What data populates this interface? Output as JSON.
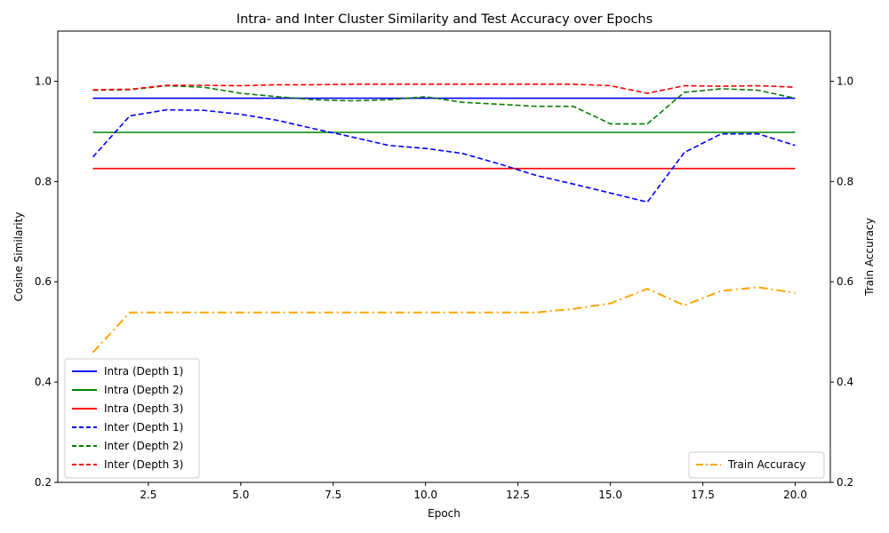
{
  "chart_data": {
    "type": "line",
    "title": "Intra- and Inter Cluster Similarity and Test Accuracy over Epochs",
    "xlabel": "Epoch",
    "ylabel": "Cosine Similarity",
    "y2label": "Train Accuracy",
    "xlim": [
      0.05,
      20.95
    ],
    "ylim": [
      0.2,
      1.1
    ],
    "y2lim": [
      0.2,
      1.1
    ],
    "xticks": [
      2.5,
      5.0,
      7.5,
      10.0,
      12.5,
      15.0,
      17.5,
      20.0
    ],
    "xtick_labels": [
      "2.5",
      "5.0",
      "7.5",
      "10.0",
      "12.5",
      "15.0",
      "17.5",
      "20.0"
    ],
    "yticks": [
      0.2,
      0.4,
      0.6,
      0.8,
      1.0
    ],
    "ytick_labels": [
      "0.2",
      "0.4",
      "0.6",
      "0.8",
      "1.0"
    ],
    "y2ticks": [
      0.2,
      0.4,
      0.6,
      0.8,
      1.0
    ],
    "y2tick_labels": [
      "0.2",
      "0.4",
      "0.6",
      "0.8",
      "1.0"
    ],
    "grid": false,
    "x": [
      1,
      2,
      3,
      4,
      5,
      6,
      7,
      8,
      9,
      10,
      11,
      12,
      13,
      14,
      15,
      16,
      17,
      18,
      19,
      20
    ],
    "series": [
      {
        "name": "Intra (Depth 1)",
        "color": "#0000ff",
        "style": "solid",
        "axis": "left",
        "values": [
          0.966,
          0.966,
          0.966,
          0.966,
          0.966,
          0.966,
          0.966,
          0.966,
          0.966,
          0.966,
          0.966,
          0.966,
          0.966,
          0.966,
          0.966,
          0.966,
          0.966,
          0.966,
          0.966,
          0.966
        ]
      },
      {
        "name": "Intra (Depth 2)",
        "color": "#008000",
        "style": "solid",
        "axis": "left",
        "values": [
          0.898,
          0.898,
          0.898,
          0.898,
          0.898,
          0.898,
          0.898,
          0.898,
          0.898,
          0.898,
          0.898,
          0.898,
          0.898,
          0.898,
          0.898,
          0.898,
          0.898,
          0.898,
          0.898,
          0.898
        ]
      },
      {
        "name": "Intra (Depth 3)",
        "color": "#ff0000",
        "style": "solid",
        "axis": "left",
        "values": [
          0.826,
          0.826,
          0.826,
          0.826,
          0.826,
          0.826,
          0.826,
          0.826,
          0.826,
          0.826,
          0.826,
          0.826,
          0.826,
          0.826,
          0.826,
          0.826,
          0.826,
          0.826,
          0.826,
          0.826
        ]
      },
      {
        "name": "Inter (Depth 1)",
        "color": "#0000ff",
        "style": "dashed",
        "axis": "left",
        "values": [
          0.849,
          0.931,
          0.943,
          0.942,
          0.934,
          0.922,
          0.905,
          0.889,
          0.872,
          0.866,
          0.856,
          0.835,
          0.812,
          0.795,
          0.777,
          0.759,
          0.858,
          0.895,
          0.895,
          0.872
        ]
      },
      {
        "name": "Inter (Depth 2)",
        "color": "#008000",
        "style": "dashed",
        "axis": "left",
        "values": [
          0.982,
          0.983,
          0.991,
          0.988,
          0.976,
          0.969,
          0.963,
          0.961,
          0.963,
          0.969,
          0.958,
          0.954,
          0.95,
          0.95,
          0.915,
          0.915,
          0.978,
          0.985,
          0.982,
          0.966
        ]
      },
      {
        "name": "Inter (Depth 3)",
        "color": "#ff0000",
        "style": "dashed",
        "axis": "left",
        "values": [
          0.983,
          0.984,
          0.992,
          0.992,
          0.991,
          0.993,
          0.993,
          0.994,
          0.994,
          0.994,
          0.994,
          0.994,
          0.994,
          0.994,
          0.991,
          0.976,
          0.991,
          0.99,
          0.991,
          0.988
        ]
      },
      {
        "name": "Train Accuracy",
        "color": "#ffa500",
        "style": "dashdot",
        "axis": "right",
        "values": [
          0.459,
          0.539,
          0.539,
          0.539,
          0.539,
          0.539,
          0.539,
          0.539,
          0.539,
          0.539,
          0.539,
          0.539,
          0.539,
          0.546,
          0.557,
          0.586,
          0.553,
          0.582,
          0.589,
          0.578
        ]
      }
    ],
    "legend_left": {
      "location": "lower-left",
      "entries": [
        "Intra (Depth 1)",
        "Intra (Depth 2)",
        "Intra (Depth 3)",
        "Inter (Depth 1)",
        "Inter (Depth 2)",
        "Inter (Depth 3)"
      ]
    },
    "legend_right": {
      "location": "lower-right",
      "entries": [
        "Train Accuracy"
      ]
    }
  }
}
